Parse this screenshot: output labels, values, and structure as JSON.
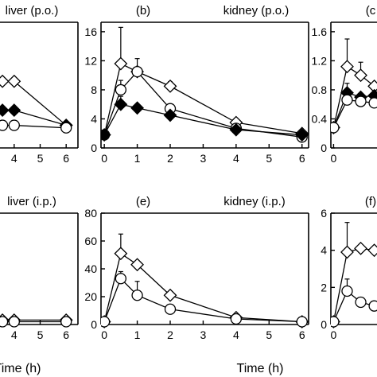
{
  "chart_data": [
    {
      "id": "a",
      "panel_label": "",
      "title": "liver (p.o.)",
      "type": "line",
      "xlabel": "",
      "x_ticks": [
        "4",
        "5",
        "6"
      ],
      "xlim": [
        3.7,
        6.3
      ],
      "ylim": [
        0,
        10
      ],
      "y_ticks": [],
      "series": [
        {
          "marker": "open-diamond",
          "x": [
            3.55,
            4,
            6
          ],
          "y": [
            5.3,
            5.3,
            1.8
          ]
        },
        {
          "marker": "filled-diamond",
          "x": [
            3.55,
            4,
            6
          ],
          "y": [
            3.0,
            3.0,
            1.8
          ]
        },
        {
          "marker": "open-circle",
          "x": [
            3.55,
            4,
            6
          ],
          "y": [
            1.8,
            1.8,
            1.6
          ]
        }
      ]
    },
    {
      "id": "b",
      "panel_label": "(b)",
      "title": "kidney (p.o.)",
      "type": "line",
      "xlabel": "",
      "x_ticks": [
        "0",
        "1",
        "2",
        "3",
        "4",
        "5",
        "6"
      ],
      "xlim": [
        -0.1,
        6.2
      ],
      "ylim": [
        0,
        17.3
      ],
      "y_ticks": [
        "0",
        "4",
        "8",
        "12",
        "16"
      ],
      "series": [
        {
          "marker": "open-diamond",
          "x": [
            0,
            0.5,
            1,
            2,
            4,
            6
          ],
          "y": [
            1.8,
            11.6,
            10.5,
            8.5,
            3.5,
            2.0
          ],
          "err": [
            0,
            5.0,
            0,
            0.6,
            0,
            0
          ]
        },
        {
          "marker": "open-circle",
          "x": [
            0,
            0.5,
            1,
            2,
            4,
            6
          ],
          "y": [
            1.8,
            8.0,
            10.5,
            5.4,
            2.7,
            1.5
          ],
          "err": [
            0,
            1.3,
            1.8,
            0,
            0,
            0
          ]
        },
        {
          "marker": "filled-diamond",
          "x": [
            0,
            0.5,
            1,
            2,
            4,
            6
          ],
          "y": [
            1.8,
            6.0,
            5.5,
            4.5,
            2.5,
            1.8
          ],
          "err": [
            0,
            1.1,
            0,
            0,
            0,
            0
          ]
        }
      ]
    },
    {
      "id": "c",
      "panel_label": "(c",
      "title": "",
      "type": "line",
      "xlabel": "",
      "x_ticks": [
        "0"
      ],
      "xlim": [
        -0.1,
        1.6
      ],
      "ylim": [
        0,
        1.73
      ],
      "y_ticks": [
        "0",
        "0.4",
        "0.8",
        "1.2",
        "1.6"
      ],
      "series": [
        {
          "marker": "open-diamond",
          "x": [
            0,
            0.5,
            1,
            1.5
          ],
          "y": [
            0.28,
            1.12,
            1.0,
            0.85
          ],
          "err": [
            0,
            0.38,
            0.18,
            0
          ]
        },
        {
          "marker": "filled-diamond",
          "x": [
            0,
            0.5,
            1,
            1.5
          ],
          "y": [
            0.28,
            0.76,
            0.7,
            0.72
          ],
          "err": [
            0,
            0.13,
            0,
            0
          ]
        },
        {
          "marker": "open-circle",
          "x": [
            0,
            0.5,
            1,
            1.5
          ],
          "y": [
            0.28,
            0.66,
            0.64,
            0.62
          ],
          "err": [
            0,
            0,
            0,
            0
          ]
        }
      ]
    },
    {
      "id": "d",
      "panel_label": "",
      "title": "liver (i.p.)",
      "type": "line",
      "xlabel": "Time (h)",
      "x_ticks": [
        "4",
        "5",
        "6"
      ],
      "xlim": [
        3.7,
        6.3
      ],
      "ylim": [
        0,
        10
      ],
      "y_ticks": [],
      "series": [
        {
          "marker": "open-diamond",
          "x": [
            3.55,
            4,
            6
          ],
          "y": [
            0.4,
            0.4,
            0.4
          ]
        },
        {
          "marker": "open-circle",
          "x": [
            3.55,
            4,
            6
          ],
          "y": [
            0.25,
            0.25,
            0.25
          ]
        }
      ]
    },
    {
      "id": "e",
      "panel_label": "(e)",
      "title": "kidney (i.p.)",
      "type": "line",
      "xlabel": "Time (h)",
      "x_ticks": [
        "0",
        "1",
        "2",
        "3",
        "4",
        "5",
        "6"
      ],
      "xlim": [
        -0.1,
        6.2
      ],
      "ylim": [
        0,
        80
      ],
      "y_ticks": [
        "0",
        "20",
        "40",
        "60",
        "80"
      ],
      "series": [
        {
          "marker": "open-diamond",
          "x": [
            0,
            0.5,
            1,
            2,
            4,
            6
          ],
          "y": [
            2,
            51,
            43,
            21,
            5,
            2
          ],
          "err": [
            0,
            14,
            0,
            0,
            0,
            0
          ]
        },
        {
          "marker": "open-circle",
          "x": [
            0,
            0.5,
            1,
            2,
            4,
            6
          ],
          "y": [
            2,
            33,
            21,
            11,
            4,
            2
          ],
          "err": [
            0,
            5,
            10,
            0,
            0,
            0
          ]
        }
      ]
    },
    {
      "id": "f",
      "panel_label": "(f)",
      "title": "",
      "type": "line",
      "xlabel": "",
      "x_ticks": [
        "0"
      ],
      "xlim": [
        -0.1,
        1.6
      ],
      "ylim": [
        0,
        6
      ],
      "y_ticks": [
        "0",
        "2",
        "4",
        "6"
      ],
      "series": [
        {
          "marker": "open-diamond",
          "x": [
            0,
            0.5,
            1,
            1.5
          ],
          "y": [
            0.15,
            3.9,
            4.1,
            4.0
          ],
          "err": [
            0,
            1.6,
            0,
            0
          ]
        },
        {
          "marker": "open-circle",
          "x": [
            0,
            0.5,
            1,
            1.5
          ],
          "y": [
            0.15,
            1.8,
            1.2,
            1.0
          ],
          "err": [
            0,
            0.65,
            0,
            0
          ]
        }
      ]
    }
  ]
}
